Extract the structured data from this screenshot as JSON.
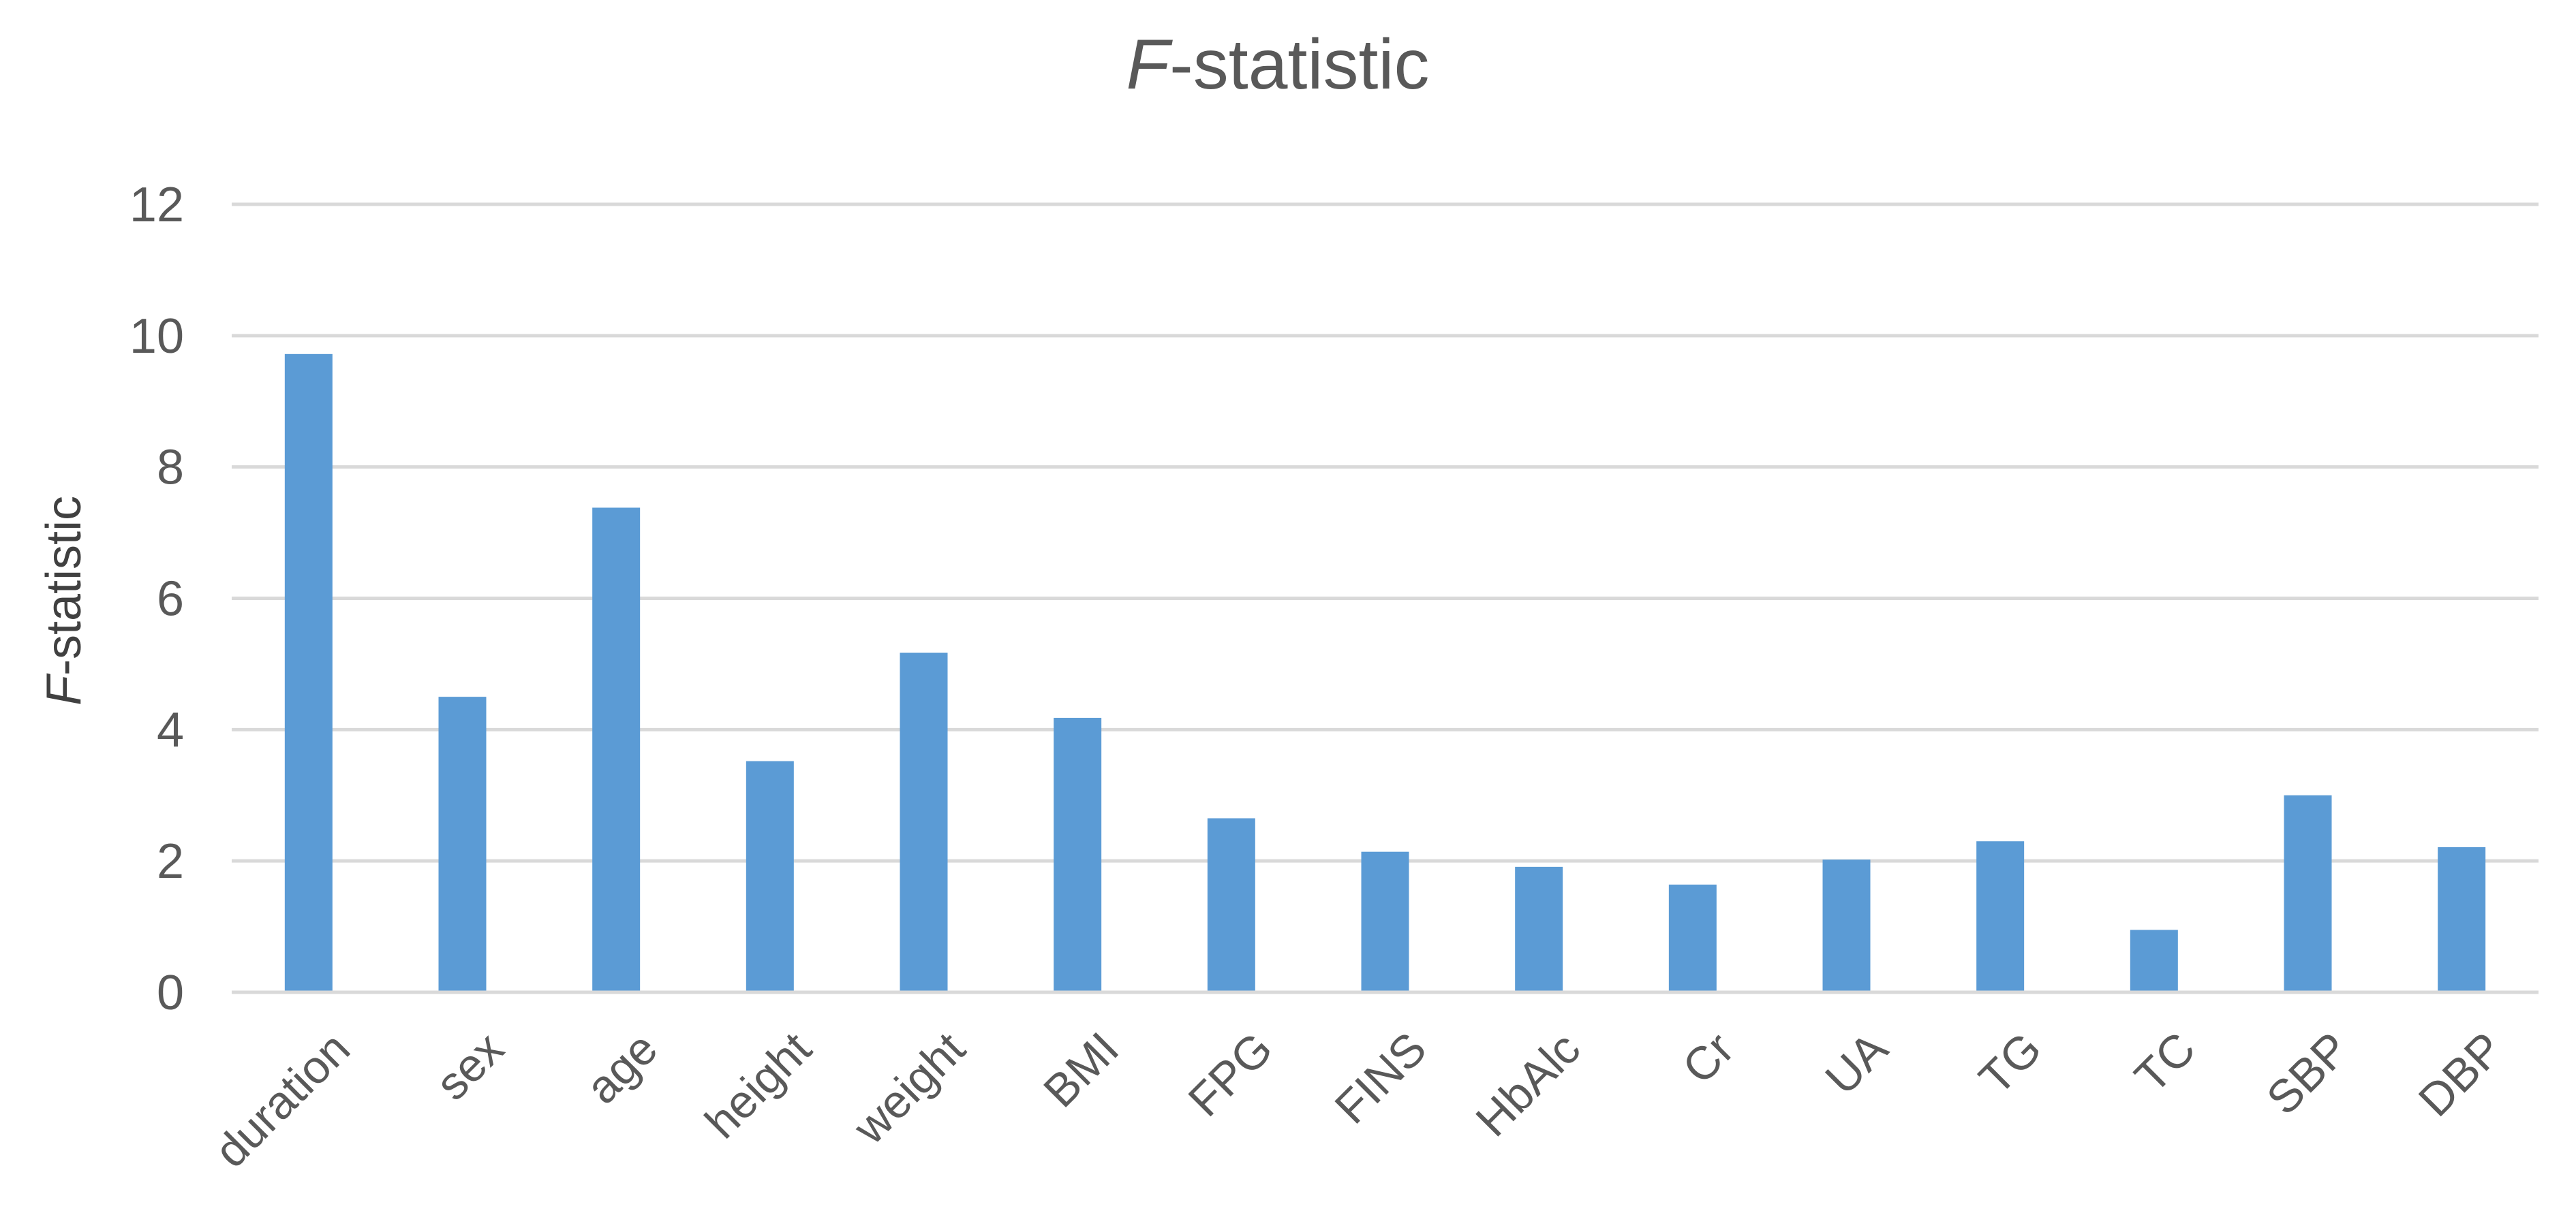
{
  "chart_data": {
    "type": "bar",
    "title": {
      "italic_part": "F",
      "rest": "-statistic"
    },
    "ylabel": {
      "italic_part": "F",
      "rest": "-statistic"
    },
    "xlabel": "",
    "categories": [
      "duration",
      "sex",
      "age",
      "height",
      "weight",
      "BMI",
      "FPG",
      "FINS",
      "HbAlc",
      "Cr",
      "UA",
      "TG",
      "TC",
      "SBP",
      "DBP"
    ],
    "values": [
      9.72,
      4.5,
      7.38,
      3.52,
      5.17,
      4.18,
      2.65,
      2.14,
      1.91,
      1.64,
      2.02,
      2.3,
      0.95,
      3.0,
      2.21
    ],
    "ylim": [
      0,
      12
    ],
    "yticks": [
      "0",
      "2",
      "4",
      "6",
      "8",
      "10",
      "12"
    ],
    "grid": true,
    "legend": "none",
    "bar_color": "#5b9bd5",
    "grid_color": "#d9d9d9",
    "text_color": "#595959"
  }
}
